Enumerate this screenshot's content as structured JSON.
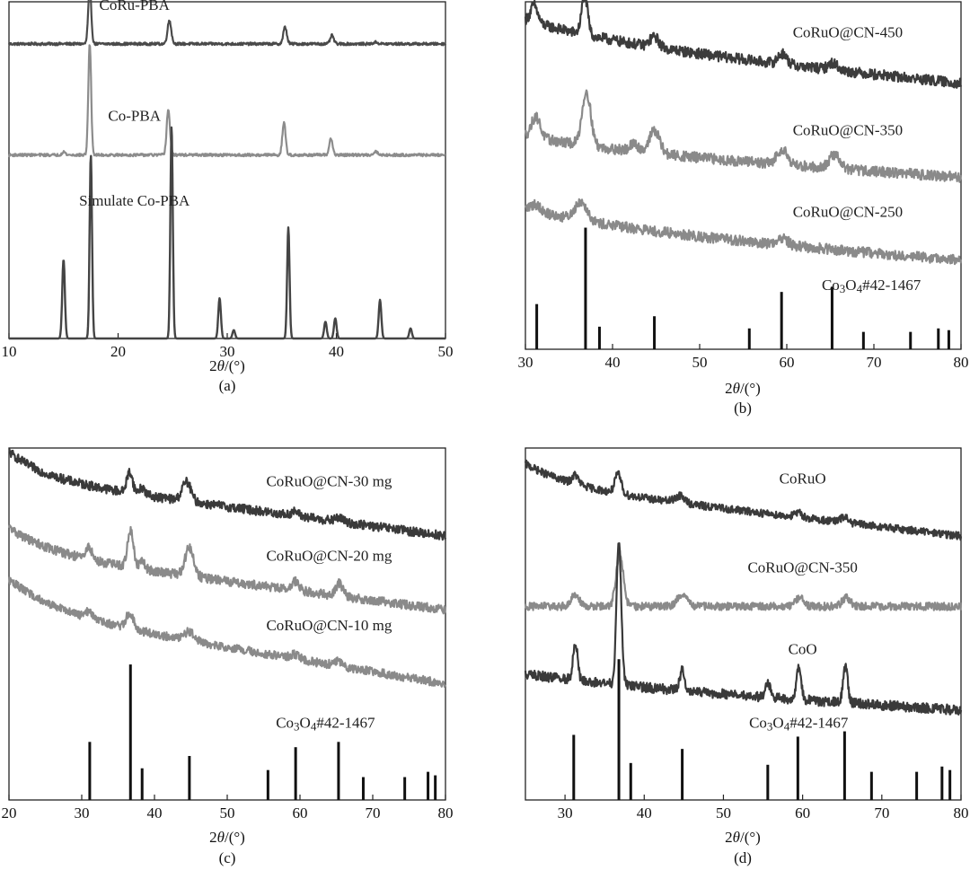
{
  "chart_data": [
    {
      "id": "a",
      "type": "line",
      "panel_label": "(a)",
      "xlabel_pre": "2",
      "xlabel_theta": "θ",
      "xlabel_post": "/(°)",
      "xlim": [
        10,
        50
      ],
      "xticks": [
        10,
        20,
        30,
        40,
        50
      ],
      "series": [
        {
          "name": "CoRu-PBA",
          "color": "#4a4a4a",
          "baseline": 0.875,
          "noise": 0.004,
          "label_x": 21.5,
          "peaks": [
            [
              17.4,
              0.165,
              0.14
            ],
            [
              24.7,
              0.07,
              0.17
            ],
            [
              35.3,
              0.05,
              0.16
            ],
            [
              39.6,
              0.025,
              0.16
            ],
            [
              43.6,
              0.005,
              0.2
            ]
          ]
        },
        {
          "name": "Co-PBA",
          "color": "#8c8c8c",
          "baseline": 0.545,
          "noise": 0.004,
          "label_x": 21.5,
          "peaks": [
            [
              17.4,
              0.33,
              0.13
            ],
            [
              24.6,
              0.135,
              0.15
            ],
            [
              35.2,
              0.095,
              0.15
            ],
            [
              39.5,
              0.05,
              0.15
            ],
            [
              43.6,
              0.01,
              0.2
            ],
            [
              15.0,
              0.01,
              0.15
            ]
          ]
        },
        {
          "name": "Simulate Co-PBA",
          "color": "#444444",
          "baseline": 0.0,
          "noise": 0.0,
          "label_x": 21.5,
          "label_y": 0.395,
          "peaks": [
            [
              15.0,
              0.235,
              0.12
            ],
            [
              17.5,
              0.545,
              0.11
            ],
            [
              24.9,
              0.63,
              0.11
            ],
            [
              29.3,
              0.12,
              0.12
            ],
            [
              30.6,
              0.025,
              0.12
            ],
            [
              35.6,
              0.33,
              0.11
            ],
            [
              39.0,
              0.05,
              0.12
            ],
            [
              39.9,
              0.06,
              0.12
            ],
            [
              44.0,
              0.115,
              0.12
            ],
            [
              46.8,
              0.03,
              0.12
            ]
          ]
        }
      ]
    },
    {
      "id": "b",
      "type": "line",
      "panel_label": "(b)",
      "xlabel_pre": "2",
      "xlabel_theta": "θ",
      "xlabel_post": "/(°)",
      "xlim": [
        30,
        80
      ],
      "xticks": [
        30,
        40,
        50,
        60,
        70,
        80
      ],
      "series": [
        {
          "name": "CoRuO@CN-450",
          "color": "#3c3c3c",
          "decay_start": 0.925,
          "decay_end": 0.765,
          "noise": 0.015,
          "label_x": 67,
          "peaks": [
            [
              31.0,
              0.05,
              0.4
            ],
            [
              36.8,
              0.11,
              0.35
            ],
            [
              44.8,
              0.03,
              0.5
            ],
            [
              59.5,
              0.03,
              0.5
            ],
            [
              65.3,
              0.02,
              0.5
            ]
          ]
        },
        {
          "name": "CoRuO@CN-350",
          "color": "#8a8a8a",
          "decay_start": 0.6,
          "decay_end": 0.495,
          "noise": 0.015,
          "label_x": 67,
          "peaks": [
            [
              31.2,
              0.06,
              0.5
            ],
            [
              37.0,
              0.155,
              0.5
            ],
            [
              44.8,
              0.065,
              0.6
            ],
            [
              42.5,
              0.02,
              0.5
            ],
            [
              59.5,
              0.045,
              0.6
            ],
            [
              65.5,
              0.04,
              0.6
            ]
          ]
        },
        {
          "name": "CoRuO@CN-250",
          "color": "#8a8a8a",
          "decay_start": 0.385,
          "decay_end": 0.255,
          "noise": 0.015,
          "label_x": 67,
          "peaks": [
            [
              36.4,
              0.055,
              0.7
            ],
            [
              31.2,
              0.02,
              0.6
            ],
            [
              59.5,
              0.02,
              0.6
            ]
          ]
        }
      ],
      "reference": {
        "name_main": "Co",
        "name_sub1": "3",
        "name_mid": "O",
        "name_sub2": "4",
        "name_tail": "#42-1467",
        "label_x": 69.7,
        "label_y": 0.17,
        "lines": [
          [
            31.3,
            0.13
          ],
          [
            36.9,
            0.35
          ],
          [
            38.5,
            0.065
          ],
          [
            44.8,
            0.095
          ],
          [
            55.7,
            0.06
          ],
          [
            59.4,
            0.165
          ],
          [
            65.2,
            0.18
          ],
          [
            68.8,
            0.05
          ],
          [
            74.2,
            0.05
          ],
          [
            77.4,
            0.06
          ],
          [
            78.6,
            0.055
          ]
        ]
      }
    },
    {
      "id": "c",
      "type": "line",
      "panel_label": "(c)",
      "xlabel_pre": "2",
      "xlabel_theta": "θ",
      "xlabel_post": "/(°)",
      "xlim": [
        20,
        80
      ],
      "xticks": [
        20,
        30,
        40,
        50,
        60,
        70,
        80
      ],
      "series": [
        {
          "name": "CoRuO@CN-30 mg",
          "color": "#3a3a3a",
          "decay_start": 0.96,
          "decay_end": 0.75,
          "noise": 0.013,
          "tau": 5,
          "label_x": 64,
          "peaks": [
            [
              36.6,
              0.06,
              0.4
            ],
            [
              38.3,
              0.02,
              0.4
            ],
            [
              44.4,
              0.055,
              0.6
            ],
            [
              59.3,
              0.012,
              0.5
            ],
            [
              65.4,
              0.012,
              0.5
            ]
          ]
        },
        {
          "name": "CoRuO@CN-20 mg",
          "color": "#8a8a8a",
          "decay_start": 0.745,
          "decay_end": 0.54,
          "noise": 0.013,
          "tau": 6,
          "label_x": 64,
          "peaks": [
            [
              31.0,
              0.035,
              0.4
            ],
            [
              36.7,
              0.105,
              0.4
            ],
            [
              38.3,
              0.02,
              0.4
            ],
            [
              44.8,
              0.08,
              0.6
            ],
            [
              59.4,
              0.025,
              0.5
            ],
            [
              65.4,
              0.035,
              0.5
            ]
          ]
        },
        {
          "name": "CoRuO@CN-10 mg",
          "color": "#8a8a8a",
          "decay_start": 0.59,
          "decay_end": 0.33,
          "noise": 0.012,
          "tau": 7,
          "label_x": 64,
          "peaks": [
            [
              31.0,
              0.02,
              0.5
            ],
            [
              36.6,
              0.045,
              0.5
            ],
            [
              44.8,
              0.025,
              0.7
            ],
            [
              59.3,
              0.012,
              0.6
            ],
            [
              65.3,
              0.015,
              0.6
            ]
          ]
        }
      ],
      "reference": {
        "name_main": "Co",
        "name_sub1": "3",
        "name_mid": "O",
        "name_sub2": "4",
        "name_tail": "#42-1467",
        "label_x": 63.5,
        "label_y": 0.205,
        "lines": [
          [
            31.1,
            0.165
          ],
          [
            36.7,
            0.385
          ],
          [
            38.3,
            0.09
          ],
          [
            44.8,
            0.125
          ],
          [
            55.6,
            0.085
          ],
          [
            59.4,
            0.15
          ],
          [
            65.3,
            0.165
          ],
          [
            68.7,
            0.065
          ],
          [
            74.4,
            0.065
          ],
          [
            77.6,
            0.08
          ],
          [
            78.6,
            0.07
          ]
        ]
      }
    },
    {
      "id": "d",
      "type": "line",
      "panel_label": "(d)",
      "xlabel_pre": "2",
      "xlabel_theta": "θ",
      "xlabel_post": "/(°)",
      "xlim": [
        25,
        80
      ],
      "xticks": [
        30,
        40,
        50,
        60,
        70,
        80
      ],
      "series": [
        {
          "name": "CoRuO",
          "color": "#3a3a3a",
          "decay_start": 0.93,
          "decay_end": 0.75,
          "noise": 0.011,
          "tau": 6,
          "label_x": 60,
          "peaks": [
            [
              31.3,
              0.025,
              0.4
            ],
            [
              36.7,
              0.055,
              0.4
            ],
            [
              44.5,
              0.02,
              0.6
            ],
            [
              59.5,
              0.012,
              0.5
            ],
            [
              65.3,
              0.015,
              0.5
            ]
          ]
        },
        {
          "name": "CoRuO@CN-350",
          "color": "#8a8a8a",
          "decay_start": 0.55,
          "decay_end": 0.55,
          "noise": 0.011,
          "tau": 8,
          "label_x": 60,
          "peaks": [
            [
              31.3,
              0.035,
              0.5
            ],
            [
              36.9,
              0.15,
              0.45
            ],
            [
              44.8,
              0.035,
              0.6
            ],
            [
              59.6,
              0.025,
              0.5
            ],
            [
              65.5,
              0.025,
              0.5
            ]
          ]
        },
        {
          "name": "CoO",
          "color": "#3a3a3a",
          "decay_start": 0.345,
          "decay_end": 0.255,
          "noise": 0.014,
          "tau": 20,
          "label_x": 60,
          "label_y": 0.415,
          "peaks": [
            [
              31.3,
              0.105,
              0.3
            ],
            [
              36.8,
              0.41,
              0.3
            ],
            [
              44.8,
              0.06,
              0.3
            ],
            [
              55.6,
              0.04,
              0.3
            ],
            [
              59.5,
              0.09,
              0.3
            ],
            [
              65.4,
              0.1,
              0.3
            ]
          ]
        }
      ],
      "reference": {
        "name_main": "Co",
        "name_sub1": "3",
        "name_mid": "O",
        "name_sub2": "4",
        "name_tail": "#42-1467",
        "label_x": 59.5,
        "label_y": 0.205,
        "lines": [
          [
            31.1,
            0.185
          ],
          [
            36.8,
            0.4
          ],
          [
            38.3,
            0.105
          ],
          [
            44.8,
            0.145
          ],
          [
            55.6,
            0.1
          ],
          [
            59.4,
            0.18
          ],
          [
            65.3,
            0.195
          ],
          [
            68.7,
            0.08
          ],
          [
            74.4,
            0.08
          ],
          [
            77.6,
            0.095
          ],
          [
            78.6,
            0.085
          ]
        ]
      }
    }
  ]
}
